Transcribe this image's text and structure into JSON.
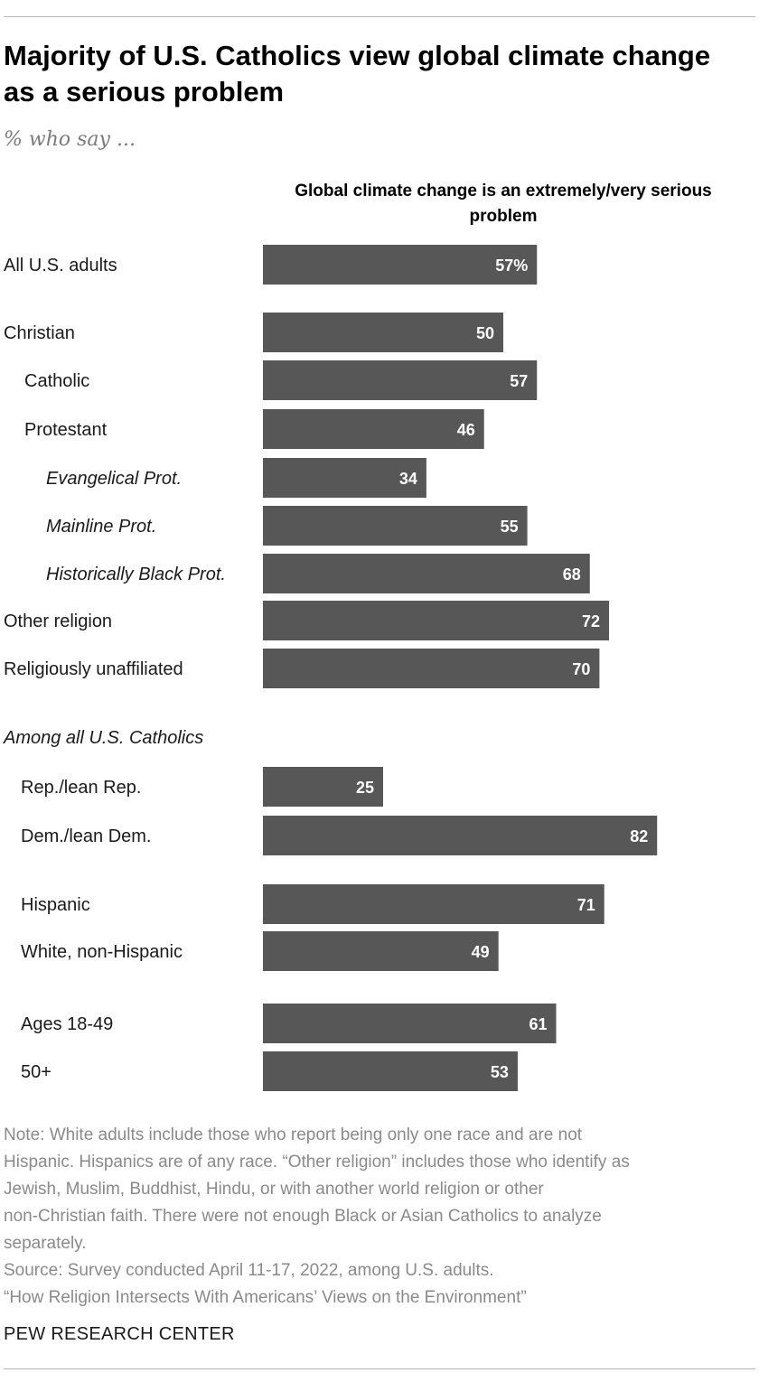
{
  "title": "Majority of U.S. Catholics view global climate change as a serious problem",
  "subtitle": "% who say ...",
  "column_header": "Global climate change is an extremely/very serious problem",
  "chart_data": {
    "type": "bar",
    "orientation": "horizontal",
    "title": "Majority of U.S. Catholics view global climate change as a serious problem",
    "series_label": "Global climate change is an extremely/very serious problem",
    "value_suffix_first": "%",
    "bar_color": "#575757",
    "xlim": [
      0,
      100
    ],
    "grid": false,
    "categories": [
      "All U.S. adults",
      "Christian",
      "Catholic",
      "Protestant",
      "Evangelical Prot.",
      "Mainline Prot.",
      "Historically Black Prot.",
      "Other religion",
      "Religiously unaffiliated",
      "Rep./lean Rep.",
      "Dem./lean Dem.",
      "Hispanic",
      "White, non-Hispanic",
      "Ages 18-49",
      "50+"
    ],
    "values": [
      57,
      50,
      57,
      46,
      34,
      55,
      68,
      72,
      70,
      25,
      82,
      71,
      49,
      61,
      53
    ],
    "value_labels": [
      "57%",
      "50",
      "57",
      "46",
      "34",
      "55",
      "68",
      "72",
      "70",
      "25",
      "82",
      "71",
      "49",
      "61",
      "53"
    ],
    "italic_categories": [
      "Evangelical Prot.",
      "Mainline Prot.",
      "Historically Black Prot."
    ],
    "section_label": "Among all U.S. Catholics"
  },
  "notes": [
    "Note: White adults include those who report being only one race and are not",
    "Hispanic. Hispanics are of any race. “Other religion” includes those who identify as",
    "Jewish, Muslim, Buddhist, Hindu, or with another world religion or other",
    "non-Christian faith. There were not enough Black or Asian Catholics to analyze",
    "separately.",
    "Source: Survey conducted April 11-17, 2022, among U.S. adults.",
    "“How Religion Intersects With Americans’ Views on the Environment”"
  ],
  "brand": "PEW RESEARCH CENTER"
}
